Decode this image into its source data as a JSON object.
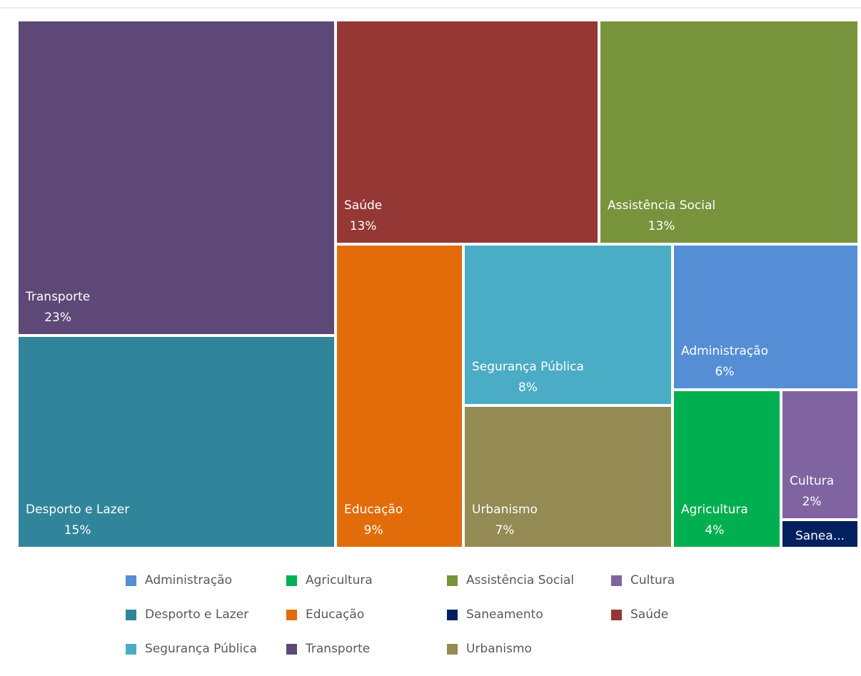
{
  "chart_data": {
    "type": "treemap",
    "categories": [
      "Transporte",
      "Desporto e Lazer",
      "Saúde",
      "Assistência Social",
      "Educação",
      "Segurança Pública",
      "Urbanismo",
      "Administração",
      "Agricultura",
      "Cultura",
      "Saneamento"
    ],
    "values": [
      23,
      15,
      13,
      13,
      9,
      8,
      7,
      6,
      4,
      2,
      1
    ],
    "value_labels": [
      "23%",
      "15%",
      "13%",
      "13%",
      "9%",
      "8%",
      "7%",
      "6%",
      "4%",
      "2%",
      ""
    ],
    "tile_labels": [
      "Transporte",
      "Desporto e Lazer",
      "Saúde",
      "Assistência Social",
      "Educação",
      "Segurança Pública",
      "Urbanismo",
      "Administração",
      "Agricultura",
      "Cultura",
      "Sanea..."
    ],
    "colors": {
      "Transporte": "#5e4877",
      "Desporto e Lazer": "#31859b",
      "Saúde": "#953735",
      "Assistência Social": "#77933c",
      "Educação": "#e36c0a",
      "Segurança Pública": "#4bacc6",
      "Urbanismo": "#948a54",
      "Administração": "#558ed5",
      "Agricultura": "#00b050",
      "Cultura": "#8064a2",
      "Saneamento": "#002060"
    },
    "legend": {
      "position": "bottom",
      "items": [
        "Administração",
        "Agricultura",
        "Assistência Social",
        "Cultura",
        "Desporto e Lazer",
        "Educação",
        "Saneamento",
        "Saúde",
        "Segurança Pública",
        "Transporte",
        "Urbanismo"
      ]
    }
  }
}
